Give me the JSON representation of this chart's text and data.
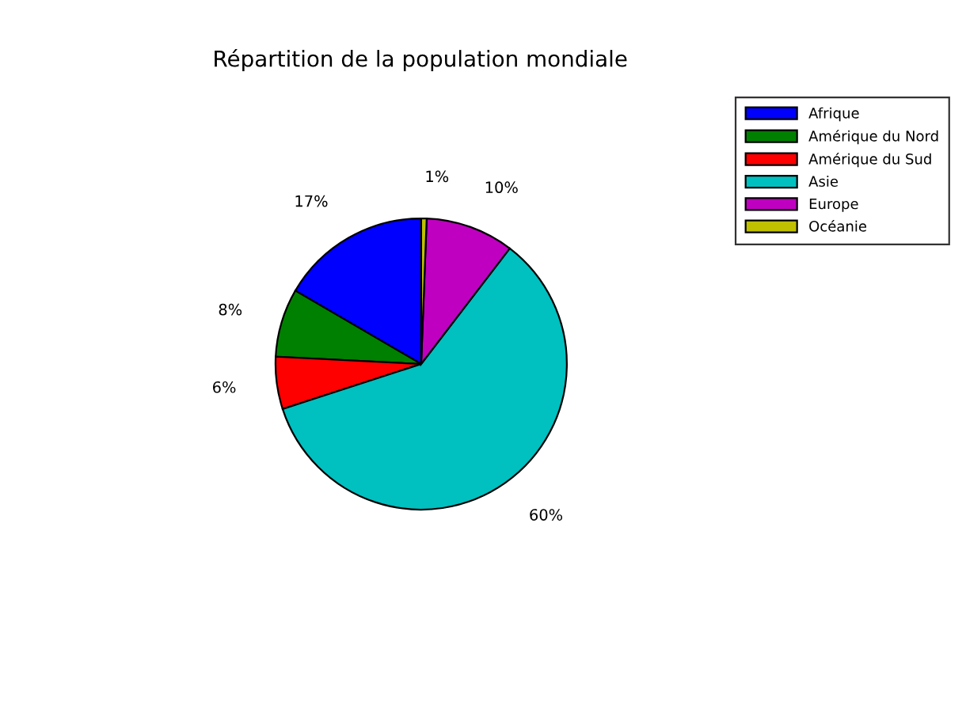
{
  "chart_data": {
    "type": "pie",
    "title": "Répartition de la population mondiale",
    "categories": [
      "Afrique",
      "Amérique du Nord",
      "Amérique du Sud",
      "Asie",
      "Europe",
      "Océanie"
    ],
    "values": [
      16.6,
      7.6,
      5.8,
      59.6,
      9.8,
      0.6
    ],
    "value_labels": [
      "17%",
      "8%",
      "6%",
      "60%",
      "10%",
      "1%"
    ],
    "colors": [
      "#0000ff",
      "#008000",
      "#ff0000",
      "#00c0c0",
      "#c000c0",
      "#c0c000"
    ],
    "legend": "top right"
  }
}
